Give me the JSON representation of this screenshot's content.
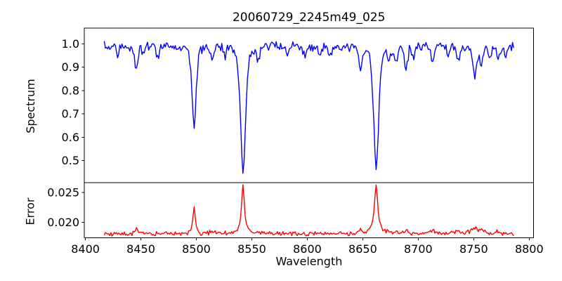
{
  "chart_data": {
    "type": "line",
    "title": "20060729_2245m49_025",
    "xlabel": "Wavelength",
    "xlim": [
      8399.0,
      8803.8
    ],
    "xticks": [
      8400,
      8450,
      8500,
      8550,
      8600,
      8650,
      8700,
      8750,
      8800
    ],
    "xtick_labels": [
      "8400",
      "8450",
      "8500",
      "8550",
      "8600",
      "8650",
      "8700",
      "8750",
      "8800"
    ],
    "x_start": 8417,
    "x_end": 8786,
    "x_step": 1,
    "grid": false,
    "legend": "none",
    "panels": [
      {
        "name": "spectrum",
        "ylabel": "Spectrum",
        "line_color": "#0000ff",
        "ylim": [
          0.405,
          1.068
        ],
        "yticks": [
          1.0,
          0.9,
          0.8,
          0.7,
          0.6,
          0.5
        ],
        "ytick_labels": [
          "1.0",
          "0.9",
          "0.8",
          "0.7",
          "0.6",
          "0.5"
        ],
        "continuum": 0.99,
        "noise_sigma": 0.01,
        "strong_lines": [
          [
            8498.0,
            0.355,
            1.9
          ],
          [
            8542.1,
            0.55,
            2.4
          ],
          [
            8662.1,
            0.525,
            2.4
          ]
        ],
        "minor_lines": [
          [
            8429,
            0.045,
            1.3
          ],
          [
            8446,
            0.105,
            1.5
          ],
          [
            8452,
            0.04,
            1.2
          ],
          [
            8465,
            0.045,
            1.3
          ],
          [
            8514,
            0.055,
            1.4
          ],
          [
            8526,
            0.035,
            1.2
          ],
          [
            8556,
            0.055,
            1.3
          ],
          [
            8582,
            0.04,
            1.2
          ],
          [
            8598,
            0.035,
            1.2
          ],
          [
            8611,
            0.04,
            1.3
          ],
          [
            8621,
            0.045,
            1.3
          ],
          [
            8648,
            0.1,
            1.4
          ],
          [
            8674,
            0.055,
            1.3
          ],
          [
            8680,
            0.06,
            1.3
          ],
          [
            8689,
            0.095,
            1.5
          ],
          [
            8696,
            0.05,
            1.3
          ],
          [
            8713,
            0.06,
            1.4
          ],
          [
            8727,
            0.045,
            1.3
          ],
          [
            8736,
            0.06,
            1.4
          ],
          [
            8751,
            0.13,
            1.9
          ],
          [
            8757,
            0.07,
            1.4
          ],
          [
            8764,
            0.06,
            1.4
          ],
          [
            8772,
            0.055,
            1.4
          ],
          [
            8779,
            0.05,
            1.4
          ]
        ],
        "absorption_minima": [
          {
            "wavelength": 8498,
            "flux": 0.64
          },
          {
            "wavelength": 8542,
            "flux": 0.44
          },
          {
            "wavelength": 8662,
            "flux": 0.46
          }
        ]
      },
      {
        "name": "error",
        "ylabel": "Error",
        "line_color": "#ff0000",
        "ylim": [
          0.01746,
          0.02664
        ],
        "yticks": [
          0.025,
          0.02
        ],
        "ytick_labels": [
          "0.025",
          "0.020"
        ],
        "baseline": 0.0181,
        "noise_sigma": 0.00018,
        "peaks": [
          [
            8446,
            0.0009,
            1.5
          ],
          [
            8498,
            0.0044,
            1.3
          ],
          [
            8542,
            0.0082,
            1.5
          ],
          [
            8662,
            0.008,
            1.9
          ],
          [
            8514,
            0.0004,
            1.5
          ],
          [
            8556,
            0.0004,
            1.5
          ],
          [
            8648,
            0.0007,
            1.5
          ],
          [
            8680,
            0.0005,
            1.5
          ],
          [
            8689,
            0.0006,
            1.5
          ],
          [
            8713,
            0.0006,
            1.6
          ],
          [
            8736,
            0.0007,
            2.0
          ],
          [
            8751,
            0.001,
            2.5
          ],
          [
            8757,
            0.0007,
            2.0
          ],
          [
            8772,
            0.0005,
            2.0
          ]
        ],
        "peak_values": [
          {
            "wavelength": 8498,
            "value": 0.0224
          },
          {
            "wavelength": 8542,
            "value": 0.0263
          },
          {
            "wavelength": 8662,
            "value": 0.0261
          }
        ]
      }
    ]
  }
}
